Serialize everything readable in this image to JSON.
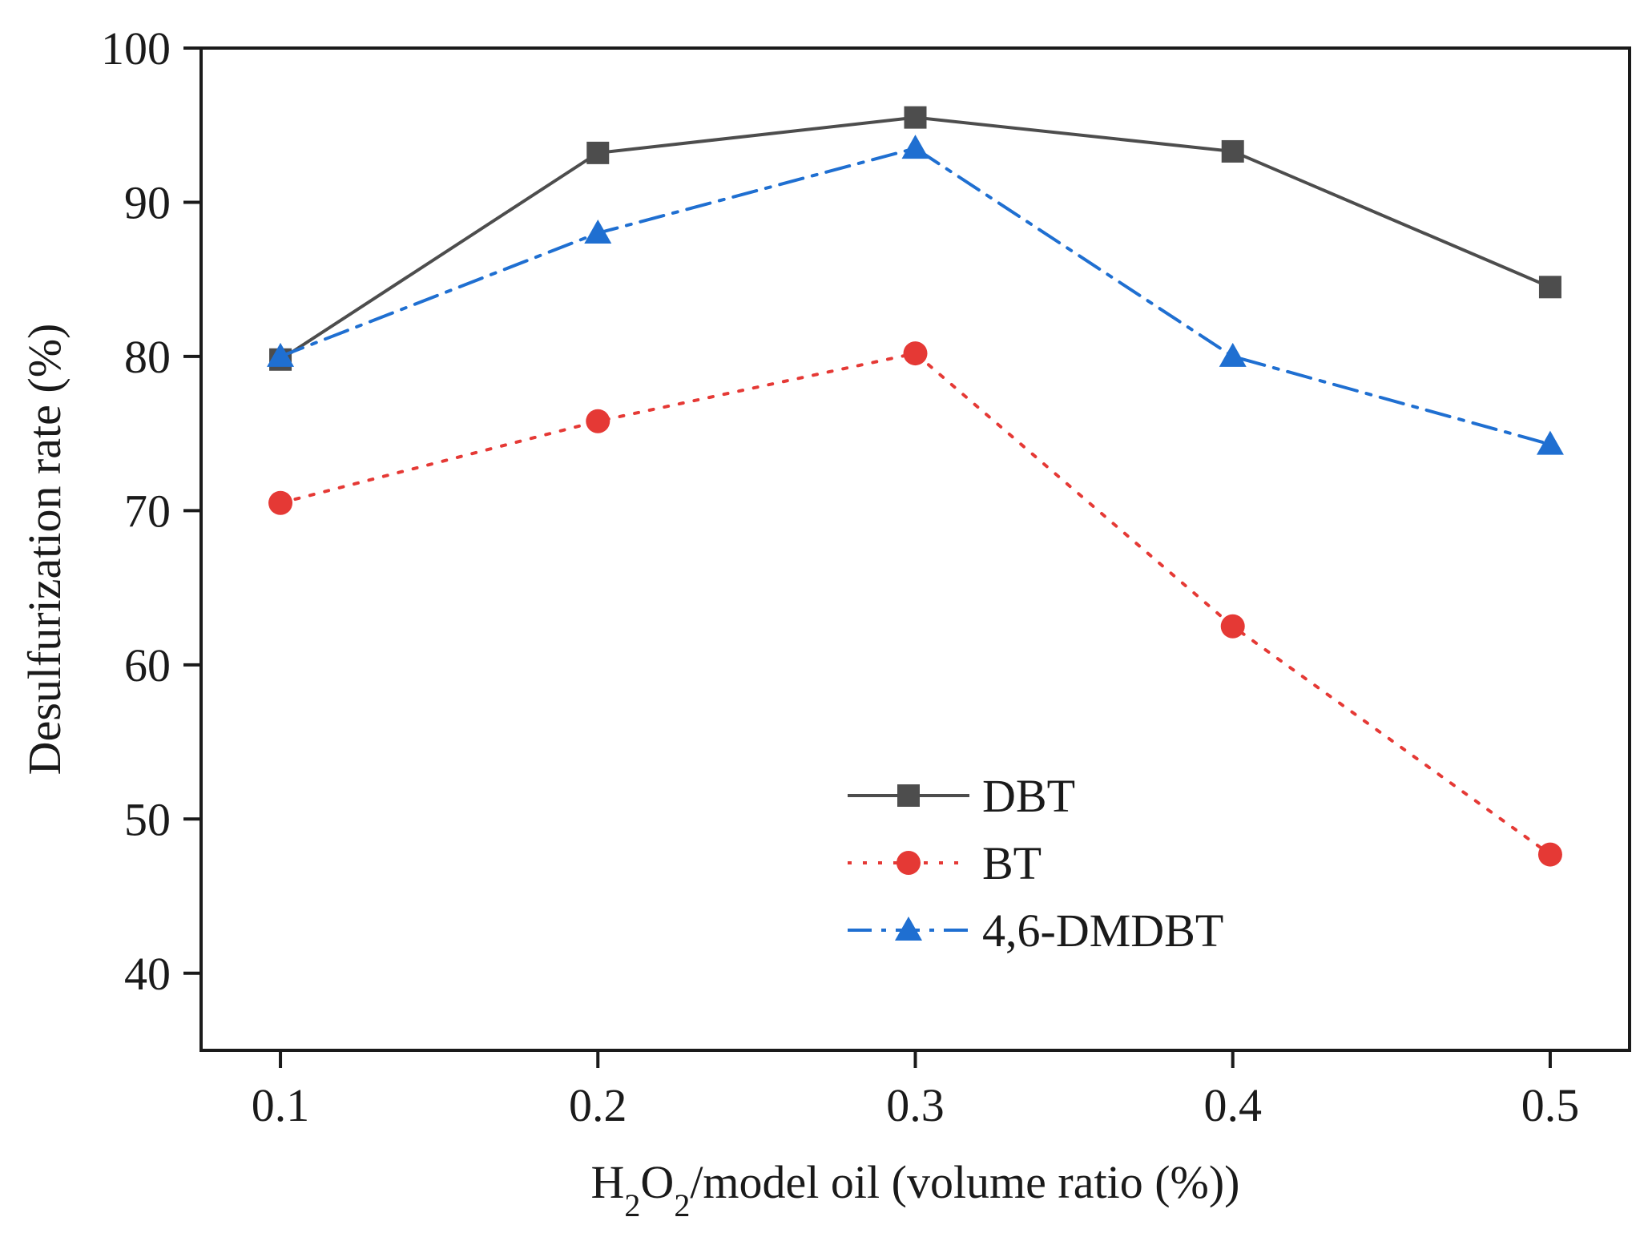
{
  "chart_data": {
    "type": "line",
    "xlabel_parts": [
      "H",
      "2",
      "O",
      "2",
      "/model oil (volume ratio (%))"
    ],
    "ylabel": "Desulfurization rate (%)",
    "x": [
      0.1,
      0.2,
      0.3,
      0.4,
      0.5
    ],
    "x_tick_labels": [
      "0.1",
      "0.2",
      "0.3",
      "0.4",
      "0.5"
    ],
    "xlim": [
      0.075,
      0.525
    ],
    "ylim": [
      35,
      100
    ],
    "y_ticks": [
      40,
      50,
      60,
      70,
      80,
      90,
      100
    ],
    "y_tick_labels": [
      "40",
      "50",
      "60",
      "70",
      "80",
      "90",
      "100"
    ],
    "grid": false,
    "legend_position": "lower-center",
    "series": [
      {
        "name": "DBT",
        "values": [
          79.8,
          93.2,
          95.5,
          93.3,
          84.5
        ],
        "color": "#4d4d4d",
        "marker": "square",
        "line_style": "solid"
      },
      {
        "name": "BT",
        "values": [
          70.5,
          75.8,
          80.2,
          62.5,
          47.7
        ],
        "color": "#e53935",
        "marker": "circle",
        "line_style": "dotted"
      },
      {
        "name": "4,6-DMDBT",
        "values": [
          80.0,
          88.0,
          93.5,
          80.0,
          74.3
        ],
        "color": "#1f6fd1",
        "marker": "triangle",
        "line_style": "dash-dot"
      }
    ]
  }
}
